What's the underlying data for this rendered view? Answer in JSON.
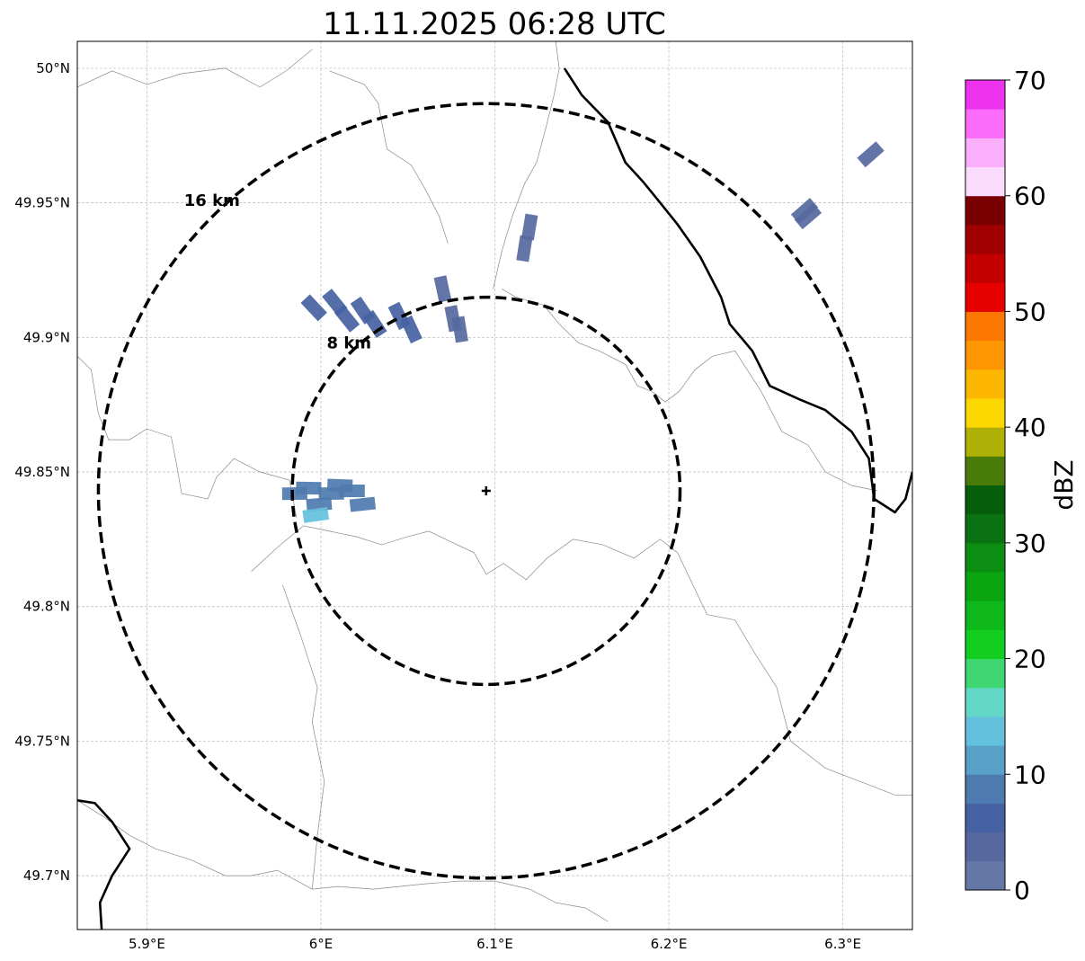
{
  "title": "11.11.2025 06:28 UTC",
  "map": {
    "lon_range": [
      5.86,
      6.34
    ],
    "lat_range": [
      49.68,
      50.01
    ],
    "center": {
      "lon": 6.095,
      "lat": 49.843
    },
    "lat_ticks": [
      {
        "value": 50.0,
        "label": "50°N"
      },
      {
        "value": 49.95,
        "label": "49.95°N"
      },
      {
        "value": 49.9,
        "label": "49.9°N"
      },
      {
        "value": 49.85,
        "label": "49.85°N"
      },
      {
        "value": 49.8,
        "label": "49.8°N"
      },
      {
        "value": 49.75,
        "label": "49.75°N"
      },
      {
        "value": 49.7,
        "label": "49.7°N"
      }
    ],
    "lon_ticks": [
      {
        "value": 5.9,
        "label": "5.9°E"
      },
      {
        "value": 6.0,
        "label": "6°E"
      },
      {
        "value": 6.1,
        "label": "6.1°E"
      },
      {
        "value": 6.2,
        "label": "6.2°E"
      },
      {
        "value": 6.3,
        "label": "6.3°E"
      }
    ],
    "rings": [
      {
        "radius_km": 8,
        "label": "8 km"
      },
      {
        "radius_km": 16,
        "label": "16 km"
      }
    ],
    "borders": [
      [
        [
          6.005,
          49.999
        ],
        [
          6.025,
          49.994
        ],
        [
          6.033,
          49.987
        ],
        [
          6.035,
          49.98
        ],
        [
          6.038,
          49.97
        ],
        [
          6.052,
          49.964
        ],
        [
          6.06,
          49.955
        ],
        [
          6.068,
          49.945
        ],
        [
          6.073,
          49.935
        ]
      ],
      [
        [
          6.135,
          50.01
        ],
        [
          6.137,
          50.0
        ],
        [
          6.134,
          49.99
        ],
        [
          6.129,
          49.977
        ],
        [
          6.124,
          49.965
        ],
        [
          6.117,
          49.957
        ],
        [
          6.11,
          49.945
        ],
        [
          6.104,
          49.932
        ],
        [
          6.099,
          49.918
        ]
      ],
      [
        [
          6.104,
          49.918
        ],
        [
          6.112,
          49.915
        ],
        [
          6.128,
          49.912
        ],
        [
          6.137,
          49.905
        ],
        [
          6.148,
          49.898
        ],
        [
          6.16,
          49.895
        ],
        [
          6.175,
          49.89
        ],
        [
          6.182,
          49.882
        ],
        [
          6.19,
          49.88
        ],
        [
          6.198,
          49.876
        ],
        [
          6.206,
          49.88
        ],
        [
          6.215,
          49.888
        ],
        [
          6.225,
          49.893
        ],
        [
          6.238,
          49.895
        ],
        [
          6.24,
          49.893
        ]
      ],
      [
        [
          5.86,
          49.893
        ],
        [
          5.868,
          49.888
        ],
        [
          5.872,
          49.872
        ],
        [
          5.878,
          49.862
        ],
        [
          5.89,
          49.862
        ],
        [
          5.9,
          49.866
        ],
        [
          5.914,
          49.863
        ],
        [
          5.917,
          49.853
        ],
        [
          5.92,
          49.842
        ],
        [
          5.935,
          49.84
        ],
        [
          5.94,
          49.848
        ],
        [
          5.95,
          49.855
        ],
        [
          5.965,
          49.85
        ],
        [
          5.982,
          49.847
        ],
        [
          5.986,
          49.833
        ]
      ],
      [
        [
          5.96,
          49.813
        ],
        [
          5.975,
          49.822
        ],
        [
          5.99,
          49.83
        ],
        [
          6.005,
          49.828
        ],
        [
          6.02,
          49.826
        ],
        [
          6.035,
          49.823
        ],
        [
          6.05,
          49.826
        ],
        [
          6.062,
          49.828
        ],
        [
          6.075,
          49.824
        ],
        [
          6.088,
          49.82
        ],
        [
          6.095,
          49.812
        ],
        [
          6.105,
          49.816
        ],
        [
          6.118,
          49.81
        ],
        [
          6.13,
          49.818
        ],
        [
          6.145,
          49.825
        ],
        [
          6.162,
          49.823
        ],
        [
          6.18,
          49.818
        ],
        [
          6.195,
          49.825
        ],
        [
          6.205,
          49.82
        ]
      ],
      [
        [
          5.978,
          49.808
        ],
        [
          5.988,
          49.79
        ],
        [
          5.998,
          49.77
        ],
        [
          5.995,
          49.757
        ],
        [
          6.002,
          49.735
        ],
        [
          5.998,
          49.715
        ],
        [
          5.995,
          49.695
        ],
        [
          6.01,
          49.696
        ],
        [
          6.03,
          49.695
        ],
        [
          6.06,
          49.697
        ],
        [
          6.08,
          49.698
        ],
        [
          6.1,
          49.698
        ],
        [
          6.12,
          49.695
        ],
        [
          6.135,
          49.69
        ],
        [
          6.152,
          49.688
        ],
        [
          6.165,
          49.683
        ]
      ],
      [
        [
          6.205,
          49.82
        ],
        [
          6.222,
          49.797
        ],
        [
          6.238,
          49.795
        ],
        [
          6.25,
          49.782
        ],
        [
          6.262,
          49.77
        ],
        [
          6.27,
          49.75
        ],
        [
          6.29,
          49.74
        ],
        [
          6.31,
          49.735
        ],
        [
          6.33,
          49.73
        ],
        [
          6.34,
          49.73
        ]
      ],
      [
        [
          6.24,
          49.893
        ],
        [
          6.253,
          49.88
        ],
        [
          6.265,
          49.865
        ],
        [
          6.28,
          49.86
        ],
        [
          6.29,
          49.85
        ],
        [
          6.305,
          49.845
        ],
        [
          6.32,
          49.843
        ]
      ],
      [
        [
          5.86,
          49.993
        ],
        [
          5.88,
          49.999
        ],
        [
          5.9,
          49.994
        ],
        [
          5.92,
          49.998
        ],
        [
          5.945,
          50.0
        ],
        [
          5.965,
          49.993
        ],
        [
          5.98,
          49.999
        ],
        [
          5.995,
          50.007
        ]
      ],
      [
        [
          5.86,
          49.728
        ],
        [
          5.875,
          49.722
        ],
        [
          5.89,
          49.715
        ],
        [
          5.905,
          49.71
        ],
        [
          5.925,
          49.706
        ],
        [
          5.945,
          49.7
        ],
        [
          5.96,
          49.7
        ],
        [
          5.975,
          49.702
        ],
        [
          5.995,
          49.695
        ]
      ]
    ],
    "national_borders": [
      [
        [
          6.14,
          50.0
        ],
        [
          6.15,
          49.99
        ],
        [
          6.165,
          49.98
        ],
        [
          6.175,
          49.965
        ],
        [
          6.185,
          49.958
        ],
        [
          6.195,
          49.95
        ],
        [
          6.205,
          49.942
        ],
        [
          6.218,
          49.93
        ],
        [
          6.23,
          49.915
        ],
        [
          6.235,
          49.905
        ],
        [
          6.248,
          49.895
        ],
        [
          6.258,
          49.882
        ],
        [
          6.275,
          49.877
        ],
        [
          6.29,
          49.873
        ],
        [
          6.305,
          49.865
        ],
        [
          6.315,
          49.855
        ],
        [
          6.318,
          49.84
        ],
        [
          6.33,
          49.835
        ],
        [
          6.336,
          49.84
        ],
        [
          6.34,
          49.85
        ]
      ],
      [
        [
          5.86,
          49.728
        ],
        [
          5.87,
          49.727
        ],
        [
          5.88,
          49.72
        ],
        [
          5.89,
          49.71
        ],
        [
          5.88,
          49.7
        ],
        [
          5.873,
          49.69
        ],
        [
          5.874,
          49.68
        ]
      ]
    ],
    "echoes": [
      {
        "cells": [
          [
            5.996,
            49.911
          ],
          [
            6.008,
            49.913
          ],
          [
            6.015,
            49.907
          ],
          [
            6.024,
            49.91
          ],
          [
            6.031,
            49.905
          ],
          [
            6.045,
            49.908
          ],
          [
            6.052,
            49.903
          ]
        ],
        "dbz": 6
      },
      {
        "cells": [
          [
            5.985,
            49.842
          ],
          [
            5.993,
            49.844
          ],
          [
            5.999,
            49.838
          ],
          [
            6.006,
            49.842
          ],
          [
            6.011,
            49.845
          ],
          [
            6.018,
            49.843
          ],
          [
            6.024,
            49.838
          ]
        ],
        "dbz": 8
      },
      {
        "cells": [
          [
            5.997,
            49.834
          ]
        ],
        "dbz": 14
      },
      {
        "cells": [
          [
            6.07,
            49.918
          ],
          [
            6.076,
            49.907
          ],
          [
            6.08,
            49.903
          ]
        ],
        "dbz": 3
      },
      {
        "cells": [
          [
            6.12,
            49.941
          ],
          [
            6.117,
            49.933
          ]
        ],
        "dbz": 3
      },
      {
        "cells": [
          [
            6.278,
            49.947
          ],
          [
            6.28,
            49.945
          ]
        ],
        "dbz": 3
      },
      {
        "cells": [
          [
            6.316,
            49.968
          ]
        ],
        "dbz": 3
      }
    ],
    "radar_site_marker": "plus-marker"
  },
  "colorbar": {
    "label": "dBZ",
    "min": 0,
    "max": 70,
    "step": 2.5,
    "tick_labels": [
      "0",
      "10",
      "20",
      "30",
      "40",
      "50",
      "60",
      "70"
    ],
    "colors": [
      "#6478a6",
      "#56699f",
      "#4662a3",
      "#4e7baf",
      "#58a0c8",
      "#64c1dd",
      "#63d8c8",
      "#3fd672",
      "#12cc1e",
      "#0eb81a",
      "#0ca512",
      "#0c8e12",
      "#0a7212",
      "#065e0c",
      "#487b08",
      "#afb006",
      "#fdd700",
      "#fdb700",
      "#fd9600",
      "#fd7800",
      "#e70000",
      "#c20000",
      "#a00000",
      "#7a0000",
      "#fcdcfc",
      "#fbaefb",
      "#fb6cfb",
      "#ee33ee"
    ]
  }
}
